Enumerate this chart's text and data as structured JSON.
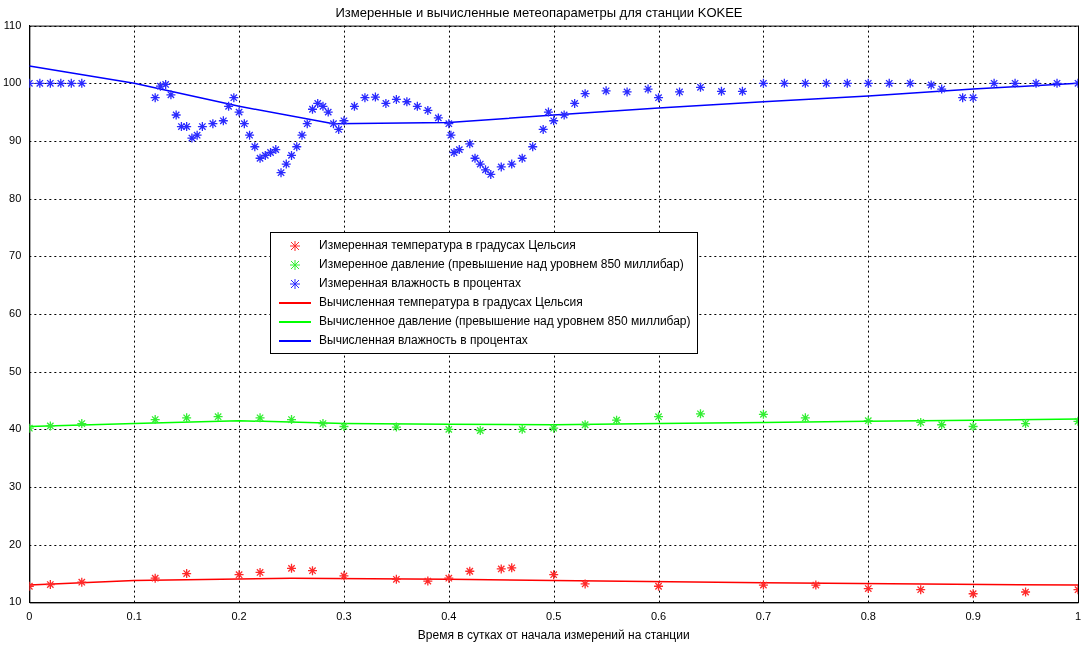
{
  "chart_data": {
    "type": "scatter",
    "title": "Измеренные и вычисленные метеопараметры для станции KOKEE",
    "xlabel": "Время в сутках от начала измерений на станции",
    "xlim": [
      0,
      1
    ],
    "xticks": [
      0,
      0.1,
      0.2,
      0.3,
      0.4,
      0.5,
      0.6,
      0.7,
      0.8,
      0.9,
      1
    ],
    "ylim": [
      10,
      110
    ],
    "yticks": [
      10,
      20,
      30,
      40,
      50,
      60,
      70,
      80,
      90,
      100,
      110
    ],
    "grid": true,
    "legend": "center",
    "series": [
      {
        "name": "Измеренная температура в градусах Цельсия",
        "type": "scatter",
        "marker": "cross",
        "color": "#ff2a2a",
        "x": [
          0,
          0.02,
          0.05,
          0.12,
          0.15,
          0.2,
          0.22,
          0.25,
          0.27,
          0.3,
          0.35,
          0.38,
          0.4,
          0.42,
          0.45,
          0.46,
          0.5,
          0.53,
          0.6,
          0.7,
          0.75,
          0.8,
          0.85,
          0.9,
          0.95,
          1
        ],
        "values": [
          12.8,
          13.1,
          13.5,
          14.2,
          15,
          14.8,
          15.2,
          15.9,
          15.5,
          14.6,
          14,
          13.7,
          14.2,
          15.4,
          15.8,
          16,
          14.8,
          13.2,
          12.8,
          13,
          13,
          12.4,
          12.2,
          11.5,
          11.8,
          12.2
        ]
      },
      {
        "name": "Измеренное давление (превышение над уровнем 850 миллибар)",
        "type": "scatter",
        "marker": "cross",
        "color": "#33ee33",
        "x": [
          0,
          0.02,
          0.05,
          0.12,
          0.15,
          0.18,
          0.22,
          0.25,
          0.28,
          0.3,
          0.35,
          0.4,
          0.43,
          0.47,
          0.5,
          0.53,
          0.56,
          0.6,
          0.64,
          0.7,
          0.74,
          0.8,
          0.85,
          0.87,
          0.9,
          0.95,
          1
        ],
        "values": [
          40.2,
          40.6,
          41,
          41.7,
          42,
          42.2,
          42,
          41.7,
          41,
          40.5,
          40.4,
          40,
          39.8,
          40,
          40.2,
          40.8,
          41.6,
          42.2,
          42.7,
          42.6,
          42,
          41.5,
          41.2,
          40.8,
          40.5,
          41,
          41.4
        ]
      },
      {
        "name": "Измеренная влажность в процентах",
        "type": "scatter",
        "marker": "cross",
        "color": "#2a2aff",
        "x": [
          0,
          0.01,
          0.02,
          0.03,
          0.04,
          0.05,
          0.12,
          0.125,
          0.13,
          0.135,
          0.14,
          0.145,
          0.15,
          0.155,
          0.16,
          0.165,
          0.175,
          0.185,
          0.19,
          0.195,
          0.2,
          0.205,
          0.21,
          0.215,
          0.22,
          0.225,
          0.23,
          0.235,
          0.24,
          0.245,
          0.25,
          0.255,
          0.26,
          0.265,
          0.27,
          0.275,
          0.28,
          0.285,
          0.29,
          0.295,
          0.3,
          0.31,
          0.32,
          0.33,
          0.34,
          0.35,
          0.36,
          0.37,
          0.38,
          0.39,
          0.4,
          0.402,
          0.405,
          0.41,
          0.42,
          0.425,
          0.43,
          0.435,
          0.44,
          0.45,
          0.46,
          0.47,
          0.48,
          0.49,
          0.495,
          0.5,
          0.51,
          0.52,
          0.53,
          0.55,
          0.57,
          0.59,
          0.6,
          0.62,
          0.64,
          0.66,
          0.68,
          0.7,
          0.72,
          0.74,
          0.76,
          0.78,
          0.8,
          0.82,
          0.84,
          0.86,
          0.87,
          0.89,
          0.9,
          0.92,
          0.94,
          0.96,
          0.98,
          1
        ],
        "values": [
          100,
          100,
          100,
          100,
          100,
          100,
          97.5,
          99.5,
          99.8,
          98,
          94.5,
          92.5,
          92.5,
          90.5,
          91,
          92.5,
          93,
          93.5,
          96,
          97.5,
          95,
          93,
          91,
          89,
          87,
          87.5,
          88,
          88.5,
          84.5,
          86,
          87.5,
          89,
          91,
          93,
          95.5,
          96.5,
          96,
          95,
          93,
          92,
          93.5,
          96,
          97.5,
          97.6,
          96.5,
          97.2,
          96.8,
          96,
          95.3,
          94,
          93,
          91,
          88,
          88.5,
          89.5,
          87,
          86,
          85,
          84.2,
          85.5,
          86,
          87,
          89,
          92,
          95,
          93.5,
          94.5,
          96.5,
          98.2,
          98.7,
          98.5,
          99,
          97.5,
          98.5,
          99.3,
          98.6,
          98.6,
          100,
          100,
          100,
          100,
          100,
          100,
          100,
          100,
          99.7,
          99,
          97.5,
          97.5,
          100,
          100,
          100,
          100,
          100
        ]
      },
      {
        "name": "Вычисленная температура в градусах Цельсия",
        "type": "line",
        "marker": "none",
        "color": "#ff0000",
        "x": [
          0,
          0.1,
          0.25,
          0.4,
          0.5,
          0.7,
          1
        ],
        "values": [
          13,
          13.8,
          14.2,
          14,
          13.8,
          13.4,
          13
        ]
      },
      {
        "name": "Вычисленное давление (превышение над уровнем 850 миллибар)",
        "type": "line",
        "marker": "none",
        "color": "#00ff00",
        "x": [
          0,
          0.1,
          0.2,
          0.3,
          0.4,
          0.5,
          0.6,
          0.7,
          0.8,
          0.9,
          1
        ],
        "values": [
          40.5,
          41,
          41.5,
          41,
          40.9,
          40.8,
          41,
          41.2,
          41.4,
          41.6,
          41.8
        ]
      },
      {
        "name": "Вычисленная влажность в процентах",
        "type": "line",
        "marker": "none",
        "color": "#0000ff",
        "x": [
          0,
          0.1,
          0.2,
          0.29,
          0.4,
          0.5,
          0.6,
          0.7,
          0.8,
          0.9,
          1
        ],
        "values": [
          103,
          100,
          96,
          93,
          93.2,
          94.5,
          95.7,
          96.8,
          97.8,
          99,
          100
        ]
      }
    ]
  }
}
